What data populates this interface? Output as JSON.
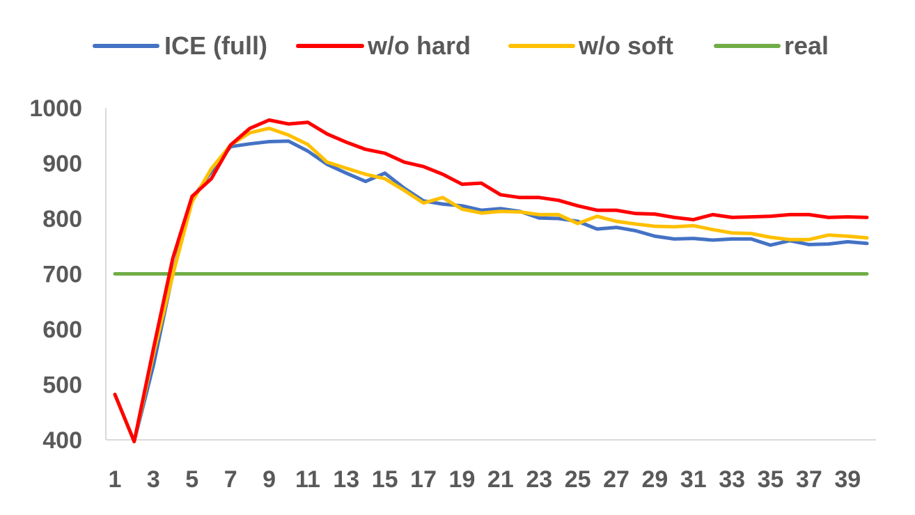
{
  "chart_data": {
    "type": "line",
    "title": "",
    "xlabel": "",
    "ylabel": "",
    "ylim": [
      400,
      1000
    ],
    "yticks": [
      "400",
      "500",
      "600",
      "700",
      "800",
      "900",
      "1000"
    ],
    "x": [
      1,
      2,
      3,
      4,
      5,
      6,
      7,
      8,
      9,
      10,
      11,
      12,
      13,
      14,
      15,
      16,
      17,
      18,
      19,
      20,
      21,
      22,
      23,
      24,
      25,
      26,
      27,
      28,
      29,
      30,
      31,
      32,
      33,
      34,
      35,
      36,
      37,
      38,
      39,
      40
    ],
    "xticks": [
      "1",
      "3",
      "5",
      "7",
      "9",
      "11",
      "13",
      "15",
      "17",
      "19",
      "21",
      "23",
      "25",
      "27",
      "29",
      "31",
      "33",
      "35",
      "37",
      "39"
    ],
    "grid": false,
    "legend_position": "top",
    "series": [
      {
        "name": "ICE (full)",
        "color": "#4472C4",
        "values": [
          482,
          397,
          535,
          700,
          835,
          885,
          930,
          935,
          939,
          940,
          922,
          898,
          882,
          867,
          882,
          855,
          832,
          826,
          823,
          815,
          818,
          813,
          801,
          800,
          795,
          781,
          784,
          778,
          768,
          763,
          764,
          761,
          763,
          763,
          752,
          760,
          753,
          754,
          758,
          755
        ]
      },
      {
        "name": "w/o hard",
        "color": "#FF0000",
        "values": [
          482,
          397,
          565,
          728,
          840,
          872,
          933,
          963,
          978,
          971,
          974,
          953,
          938,
          925,
          918,
          902,
          894,
          880,
          862,
          864,
          843,
          838,
          838,
          833,
          823,
          815,
          815,
          809,
          808,
          802,
          798,
          807,
          802,
          803,
          804,
          807,
          807,
          802,
          803,
          802
        ]
      },
      {
        "name": "w/o soft",
        "color": "#FFC000",
        "values": [
          482,
          397,
          555,
          698,
          830,
          890,
          933,
          955,
          963,
          951,
          934,
          902,
          891,
          880,
          872,
          851,
          828,
          838,
          817,
          810,
          813,
          812,
          807,
          807,
          791,
          804,
          795,
          790,
          786,
          785,
          787,
          780,
          774,
          773,
          766,
          762,
          762,
          770,
          768,
          765
        ]
      },
      {
        "name": "real",
        "color": "#70AD47",
        "values": [
          700,
          700,
          700,
          700,
          700,
          700,
          700,
          700,
          700,
          700,
          700,
          700,
          700,
          700,
          700,
          700,
          700,
          700,
          700,
          700,
          700,
          700,
          700,
          700,
          700,
          700,
          700,
          700,
          700,
          700,
          700,
          700,
          700,
          700,
          700,
          700,
          700,
          700,
          700,
          700
        ]
      }
    ]
  }
}
